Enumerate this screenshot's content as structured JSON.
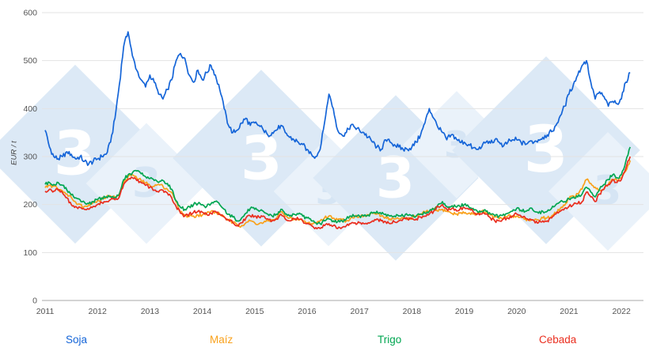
{
  "watermark": {
    "digit": "3",
    "fill": "#dce9f6",
    "digit_color": "#ffffff"
  },
  "chart_data": {
    "type": "line",
    "title": "",
    "xlabel": "",
    "ylabel": "EUR / t",
    "ylim": [
      0,
      600
    ],
    "xlim": [
      2011,
      2022.3
    ],
    "grid": true,
    "legend_position": "bottom",
    "y_ticks": [
      0,
      100,
      200,
      300,
      400,
      500,
      600
    ],
    "x_tick_labels": [
      "2011",
      "2012",
      "2013",
      "2014",
      "2015",
      "2016",
      "2017",
      "2018",
      "2019",
      "2020",
      "2021",
      "2022"
    ],
    "x_start": 2011,
    "points_per_year": 12,
    "series": [
      {
        "id": "soja",
        "name": "Soja",
        "color": "#1565d8",
        "values": [
          355,
          320,
          300,
          295,
          300,
          310,
          305,
          295,
          300,
          290,
          285,
          290,
          295,
          300,
          305,
          330,
          380,
          450,
          530,
          560,
          510,
          480,
          460,
          445,
          470,
          455,
          430,
          420,
          440,
          460,
          500,
          515,
          505,
          470,
          455,
          480,
          460,
          475,
          490,
          470,
          440,
          400,
          365,
          350,
          355,
          370,
          380,
          365,
          370,
          365,
          355,
          345,
          350,
          355,
          365,
          350,
          340,
          335,
          330,
          325,
          315,
          305,
          300,
          315,
          370,
          430,
          400,
          355,
          345,
          350,
          365,
          360,
          355,
          350,
          340,
          330,
          320,
          315,
          335,
          330,
          325,
          320,
          315,
          315,
          320,
          330,
          345,
          370,
          400,
          380,
          360,
          350,
          335,
          345,
          340,
          330,
          330,
          325,
          318,
          315,
          320,
          330,
          328,
          335,
          330,
          322,
          330,
          335,
          335,
          330,
          325,
          332,
          330,
          335,
          340,
          345,
          352,
          365,
          385,
          405,
          430,
          450,
          470,
          490,
          500,
          455,
          420,
          435,
          425,
          405,
          415,
          410,
          420,
          455,
          475
        ]
      },
      {
        "id": "maiz",
        "name": "Maíz",
        "color": "#f9a11b",
        "values": [
          235,
          240,
          238,
          232,
          228,
          222,
          215,
          205,
          200,
          196,
          200,
          205,
          208,
          212,
          215,
          218,
          215,
          222,
          245,
          258,
          262,
          255,
          250,
          245,
          240,
          238,
          242,
          238,
          232,
          225,
          205,
          185,
          178,
          175,
          176,
          178,
          178,
          182,
          186,
          184,
          180,
          175,
          168,
          162,
          158,
          156,
          162,
          166,
          162,
          160,
          162,
          166,
          168,
          172,
          185,
          176,
          172,
          170,
          168,
          165,
          162,
          160,
          162,
          166,
          172,
          176,
          172,
          168,
          168,
          166,
          172,
          176,
          176,
          176,
          178,
          182,
          180,
          176,
          174,
          170,
          170,
          170,
          172,
          172,
          172,
          176,
          180,
          184,
          186,
          190,
          186,
          190,
          186,
          182,
          180,
          182,
          182,
          182,
          180,
          182,
          186,
          184,
          178,
          174,
          170,
          172,
          176,
          176,
          176,
          174,
          170,
          166,
          166,
          168,
          172,
          172,
          176,
          182,
          192,
          198,
          212,
          218,
          222,
          232,
          252,
          244,
          236,
          230,
          232,
          242,
          252,
          250,
          255,
          270,
          292
        ]
      },
      {
        "id": "trigo",
        "name": "Trigo",
        "color": "#00a651",
        "values": [
          242,
          246,
          242,
          246,
          240,
          230,
          220,
          214,
          210,
          205,
          202,
          206,
          210,
          214,
          216,
          216,
          215,
          222,
          252,
          262,
          266,
          270,
          264,
          258,
          254,
          250,
          246,
          250,
          244,
          232,
          208,
          194,
          190,
          196,
          200,
          202,
          200,
          196,
          202,
          206,
          200,
          190,
          180,
          174,
          166,
          172,
          182,
          192,
          190,
          186,
          186,
          180,
          176,
          180,
          190,
          180,
          176,
          180,
          180,
          176,
          172,
          166,
          162,
          160,
          166,
          170,
          166,
          164,
          166,
          170,
          176,
          176,
          176,
          176,
          178,
          182,
          186,
          180,
          180,
          176,
          176,
          176,
          176,
          178,
          176,
          176,
          180,
          182,
          186,
          190,
          200,
          206,
          196,
          196,
          196,
          196,
          200,
          196,
          192,
          186,
          186,
          186,
          180,
          176,
          176,
          180,
          182,
          186,
          192,
          188,
          186,
          192,
          186,
          182,
          186,
          186,
          192,
          200,
          206,
          206,
          212,
          216,
          216,
          222,
          236,
          226,
          216,
          232,
          242,
          252,
          262,
          256,
          262,
          290,
          320
        ]
      },
      {
        "id": "cebada",
        "name": "Cebada",
        "color": "#ea2e1f",
        "values": [
          228,
          232,
          228,
          230,
          224,
          214,
          200,
          196,
          194,
          190,
          190,
          196,
          200,
          204,
          206,
          210,
          210,
          216,
          242,
          252,
          256,
          250,
          246,
          240,
          236,
          230,
          226,
          230,
          224,
          214,
          196,
          182,
          176,
          180,
          184,
          186,
          184,
          180,
          182,
          186,
          180,
          174,
          168,
          162,
          156,
          162,
          172,
          176,
          176,
          174,
          176,
          170,
          166,
          170,
          180,
          170,
          166,
          170,
          170,
          166,
          160,
          156,
          152,
          150,
          156,
          160,
          156,
          150,
          152,
          156,
          160,
          162,
          162,
          160,
          162,
          166,
          170,
          166,
          164,
          160,
          164,
          166,
          170,
          170,
          170,
          170,
          174,
          176,
          180,
          186,
          196,
          200,
          190,
          190,
          190,
          190,
          194,
          190,
          186,
          180,
          180,
          180,
          172,
          166,
          166,
          170,
          172,
          176,
          180,
          176,
          172,
          170,
          166,
          162,
          166,
          166,
          172,
          180,
          186,
          192,
          196,
          200,
          202,
          206,
          226,
          216,
          206,
          222,
          232,
          242,
          252,
          246,
          252,
          275,
          300
        ]
      }
    ]
  }
}
